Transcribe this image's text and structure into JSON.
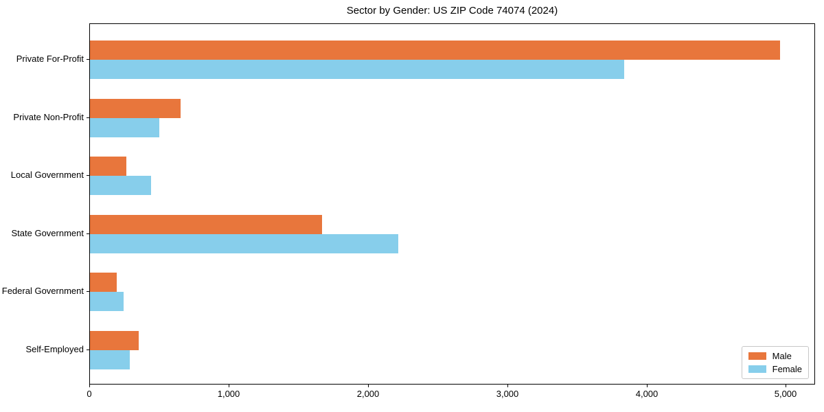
{
  "chart_data": {
    "type": "bar",
    "orientation": "horizontal",
    "title": "Sector by Gender: US ZIP Code 74074 (2024)",
    "xlabel": "",
    "ylabel": "",
    "grid": false,
    "legend_position": "lower right",
    "xlim": [
      0,
      5200
    ],
    "categories": [
      "Private For-Profit",
      "Private Non-Profit",
      "Local Government",
      "State Government",
      "Federal Government",
      "Self-Employed"
    ],
    "series": [
      {
        "name": "Male",
        "color": "#e8763c",
        "values": [
          4955,
          650,
          262,
          1668,
          192,
          350
        ]
      },
      {
        "name": "Female",
        "color": "#87ceeb",
        "values": [
          3835,
          498,
          438,
          2215,
          240,
          285
        ]
      }
    ],
    "xticks": [
      {
        "value": 0,
        "label": "0"
      },
      {
        "value": 1000,
        "label": "1,000"
      },
      {
        "value": 2000,
        "label": "2,000"
      },
      {
        "value": 3000,
        "label": "3,000"
      },
      {
        "value": 4000,
        "label": "4,000"
      },
      {
        "value": 5000,
        "label": "5,000"
      }
    ],
    "colors": {
      "axis": "#000000",
      "background": "#ffffff",
      "legend_border": "#c7c7c7"
    }
  }
}
